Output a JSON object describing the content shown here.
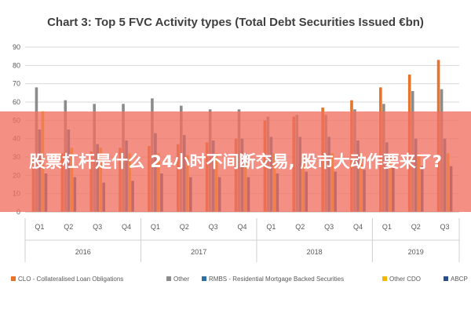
{
  "chart_data": {
    "type": "bar",
    "title": "Chart 3: Top 5 FVC Activity types (Total Debt Securities Issued €bn)",
    "xlabel": "",
    "ylabel": "",
    "ylim": [
      0,
      90
    ],
    "yticks": [
      0,
      10,
      20,
      30,
      40,
      50,
      60,
      70,
      80,
      90
    ],
    "grid": true,
    "legend_position": "bottom",
    "categories": [
      "Q1",
      "Q2",
      "Q3",
      "Q4",
      "Q1",
      "Q2",
      "Q3",
      "Q4",
      "Q1",
      "Q2",
      "Q3",
      "Q4",
      "Q1",
      "Q2",
      "Q3"
    ],
    "groups": [
      {
        "label": "2016",
        "count": 4
      },
      {
        "label": "2017",
        "count": 4
      },
      {
        "label": "2018",
        "count": 4
      },
      {
        "label": "2019",
        "count": 3
      }
    ],
    "series": [
      {
        "name": "CLO - Collateralised Loan Obligations",
        "color": "#e8732a",
        "values": [
          30,
          32,
          33,
          35,
          36,
          37,
          38,
          40,
          50,
          52,
          57,
          61,
          68,
          75,
          83
        ]
      },
      {
        "name": "Other",
        "color": "#8c8c8c",
        "values": [
          68,
          61,
          59,
          59,
          62,
          58,
          56,
          56,
          52,
          53,
          53,
          56,
          59,
          66,
          67
        ]
      },
      {
        "name": "RMBS - Residential Mortgage Backed Securities",
        "color": "#2e6f9e",
        "values": [
          45,
          45,
          37,
          39,
          43,
          42,
          39,
          40,
          41,
          41,
          41,
          39,
          38,
          40,
          40
        ]
      },
      {
        "name": "Other CDO",
        "color": "#f2b705",
        "values": [
          55,
          35,
          35,
          32,
          32,
          31,
          32,
          32,
          32,
          32,
          32,
          32,
          32,
          32,
          32
        ]
      },
      {
        "name": "ABCP",
        "color": "#2a4d8c",
        "values": [
          21,
          19,
          16,
          17,
          21,
          19,
          19,
          19,
          21,
          22,
          22,
          23,
          24,
          25,
          25
        ]
      }
    ]
  },
  "overlay": {
    "text": "股票杠杆是什么 24小时不间断交易, 股市大动作要来了?"
  }
}
